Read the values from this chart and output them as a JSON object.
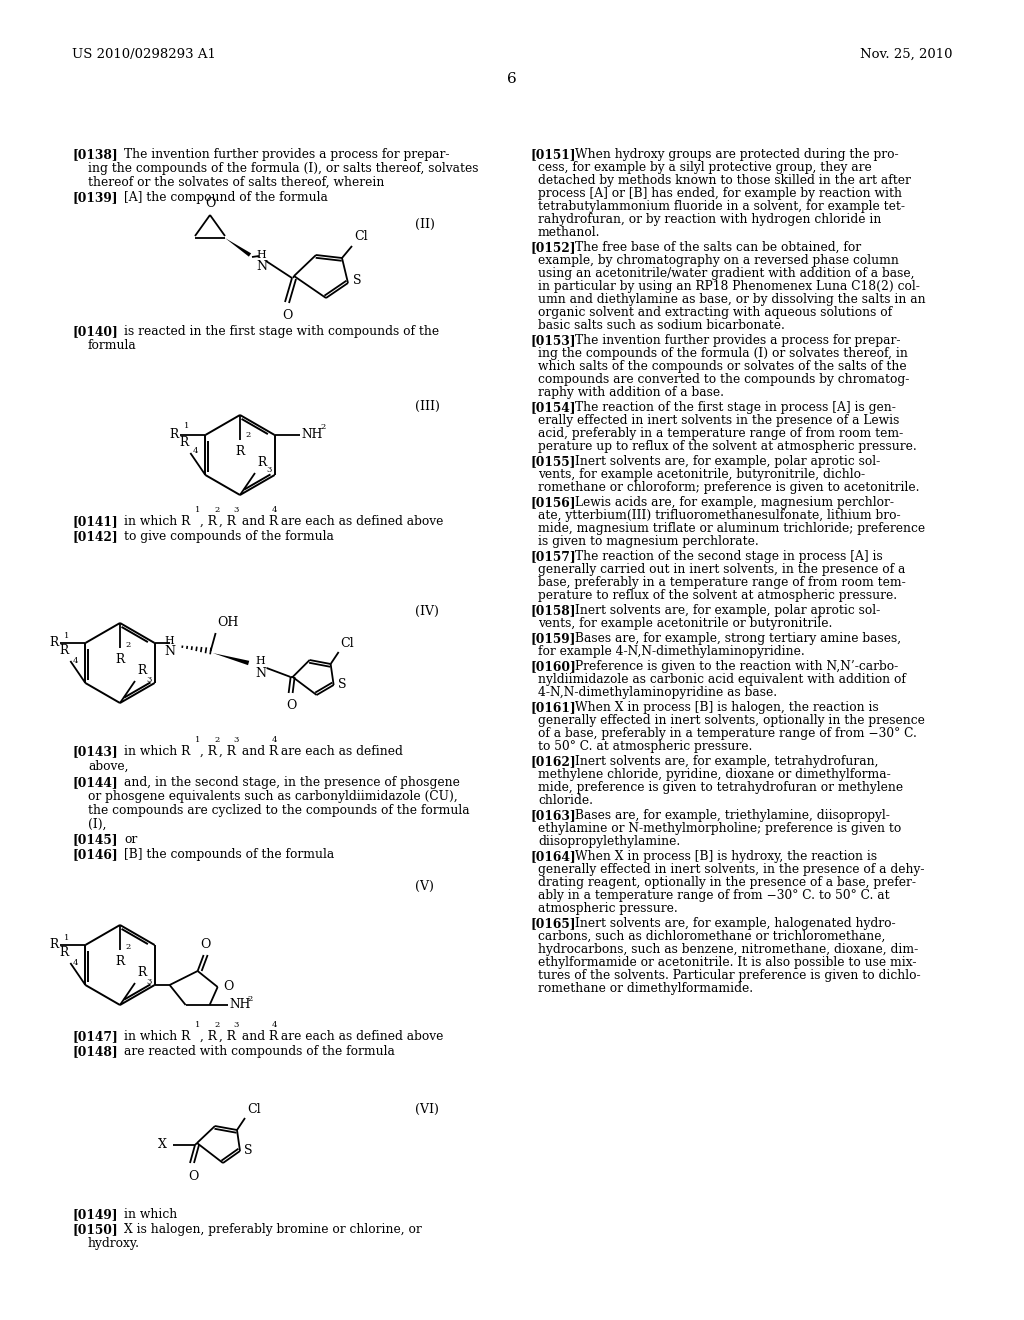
{
  "page_number": "6",
  "patent_number": "US 2010/0298293 A1",
  "patent_date": "Nov. 25, 2010",
  "bg": "#ffffff"
}
